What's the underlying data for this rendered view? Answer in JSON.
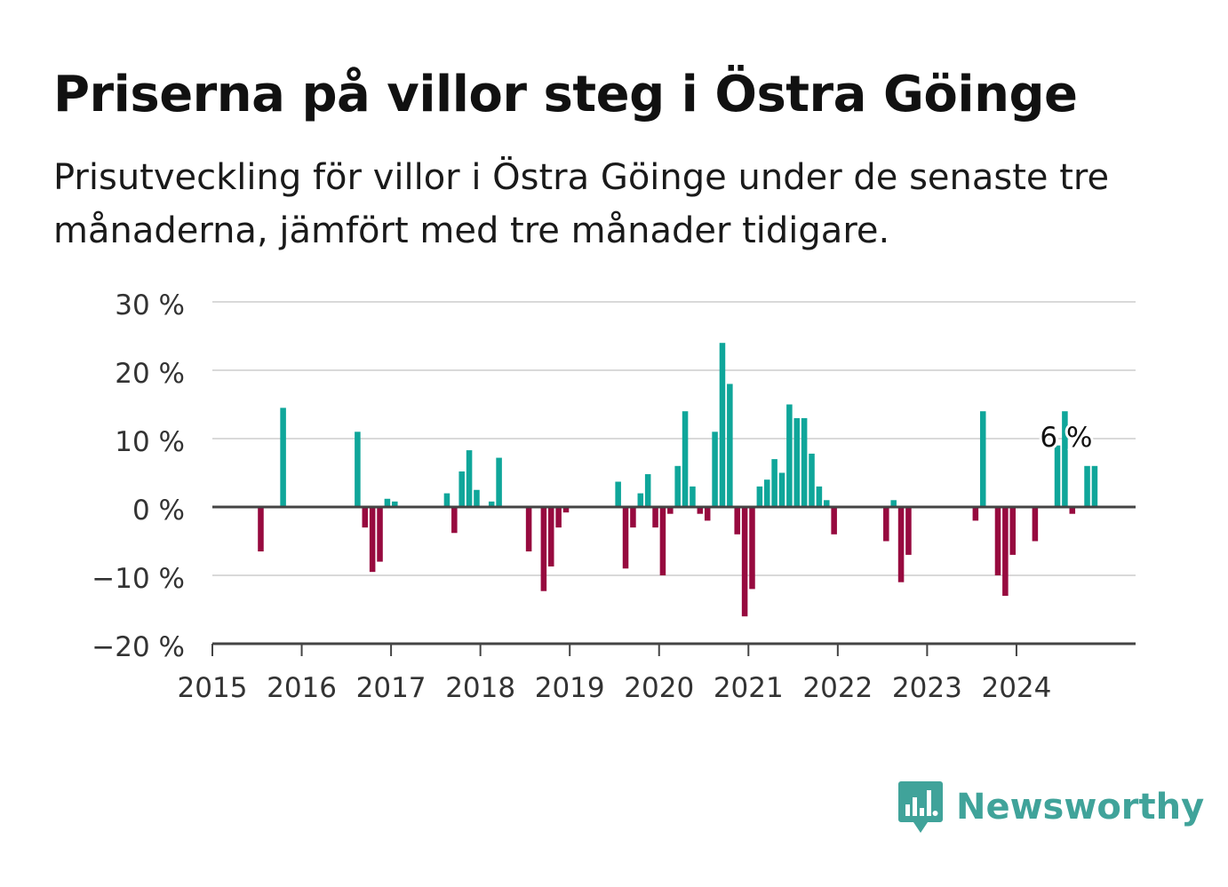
{
  "header": {
    "title": "Priserna på villor steg i Östra Göinge",
    "subtitle": "Prisutveckling för villor i Östra Göinge under de senaste tre månaderna, jämfört med tre månader tidigare."
  },
  "brand": {
    "name": "Newsworthy",
    "color": "#40a39a",
    "icon": "bar-chart-speech-bubble-icon"
  },
  "colors": {
    "positive": "#0fa69a",
    "negative": "#970a3f",
    "grid": "#d9d9d9",
    "axis": "#444444"
  },
  "chart_data": {
    "type": "bar",
    "title": "Priserna på villor steg i Östra Göinge",
    "xlabel": "",
    "ylabel": "",
    "ylim": [
      -20,
      30
    ],
    "yticks": [
      30,
      20,
      10,
      0,
      -10,
      -20
    ],
    "ytick_labels": [
      "30 %",
      "20 %",
      "10 %",
      "0 %",
      "−10 %",
      "−20 %"
    ],
    "xlim": [
      "2015-01",
      "2025-05"
    ],
    "xtick_labels": [
      "2015",
      "2016",
      "2017",
      "2018",
      "2019",
      "2020",
      "2021",
      "2022",
      "2023",
      "2024"
    ],
    "grid": true,
    "annotation": {
      "x": "2024-11",
      "text": "6 %"
    },
    "x": [
      "2015-07",
      "2015-10",
      "2016-08",
      "2016-09",
      "2016-10",
      "2016-11",
      "2016-12",
      "2017-01",
      "2017-08",
      "2017-09",
      "2017-10",
      "2017-11",
      "2017-12",
      "2018-02",
      "2018-03",
      "2018-07",
      "2018-09",
      "2018-10",
      "2018-11",
      "2018-12",
      "2019-07",
      "2019-08",
      "2019-09",
      "2019-10",
      "2019-11",
      "2019-12",
      "2020-01",
      "2020-02",
      "2020-03",
      "2020-04",
      "2020-05",
      "2020-06",
      "2020-07",
      "2020-08",
      "2020-09",
      "2020-10",
      "2020-11",
      "2020-12",
      "2021-01",
      "2021-02",
      "2021-03",
      "2021-04",
      "2021-05",
      "2021-06",
      "2021-07",
      "2021-08",
      "2021-09",
      "2021-10",
      "2021-11",
      "2021-12",
      "2022-07",
      "2022-08",
      "2022-09",
      "2022-10",
      "2023-07",
      "2023-08",
      "2023-10",
      "2023-11",
      "2023-12",
      "2024-03",
      "2024-06",
      "2024-07",
      "2024-08",
      "2024-10",
      "2024-11"
    ],
    "values": [
      -6.5,
      14.5,
      11,
      -3,
      -9.5,
      -8,
      1.2,
      0.8,
      2,
      -3.8,
      5.2,
      8.3,
      2.5,
      0.8,
      7.2,
      -6.5,
      -12.3,
      -8.7,
      -3,
      -0.8,
      3.7,
      -9,
      -3,
      2,
      4.8,
      -3,
      -10,
      -1,
      6,
      14,
      3,
      -1,
      -2,
      11,
      24,
      18,
      -4,
      -16,
      -12,
      3,
      4,
      7,
      5,
      15,
      13,
      13,
      7.8,
      3,
      1,
      -4,
      -5,
      1,
      -11,
      -7,
      -2,
      14,
      -10,
      -13,
      -7,
      -5,
      9,
      14,
      -1,
      6,
      6
    ]
  }
}
